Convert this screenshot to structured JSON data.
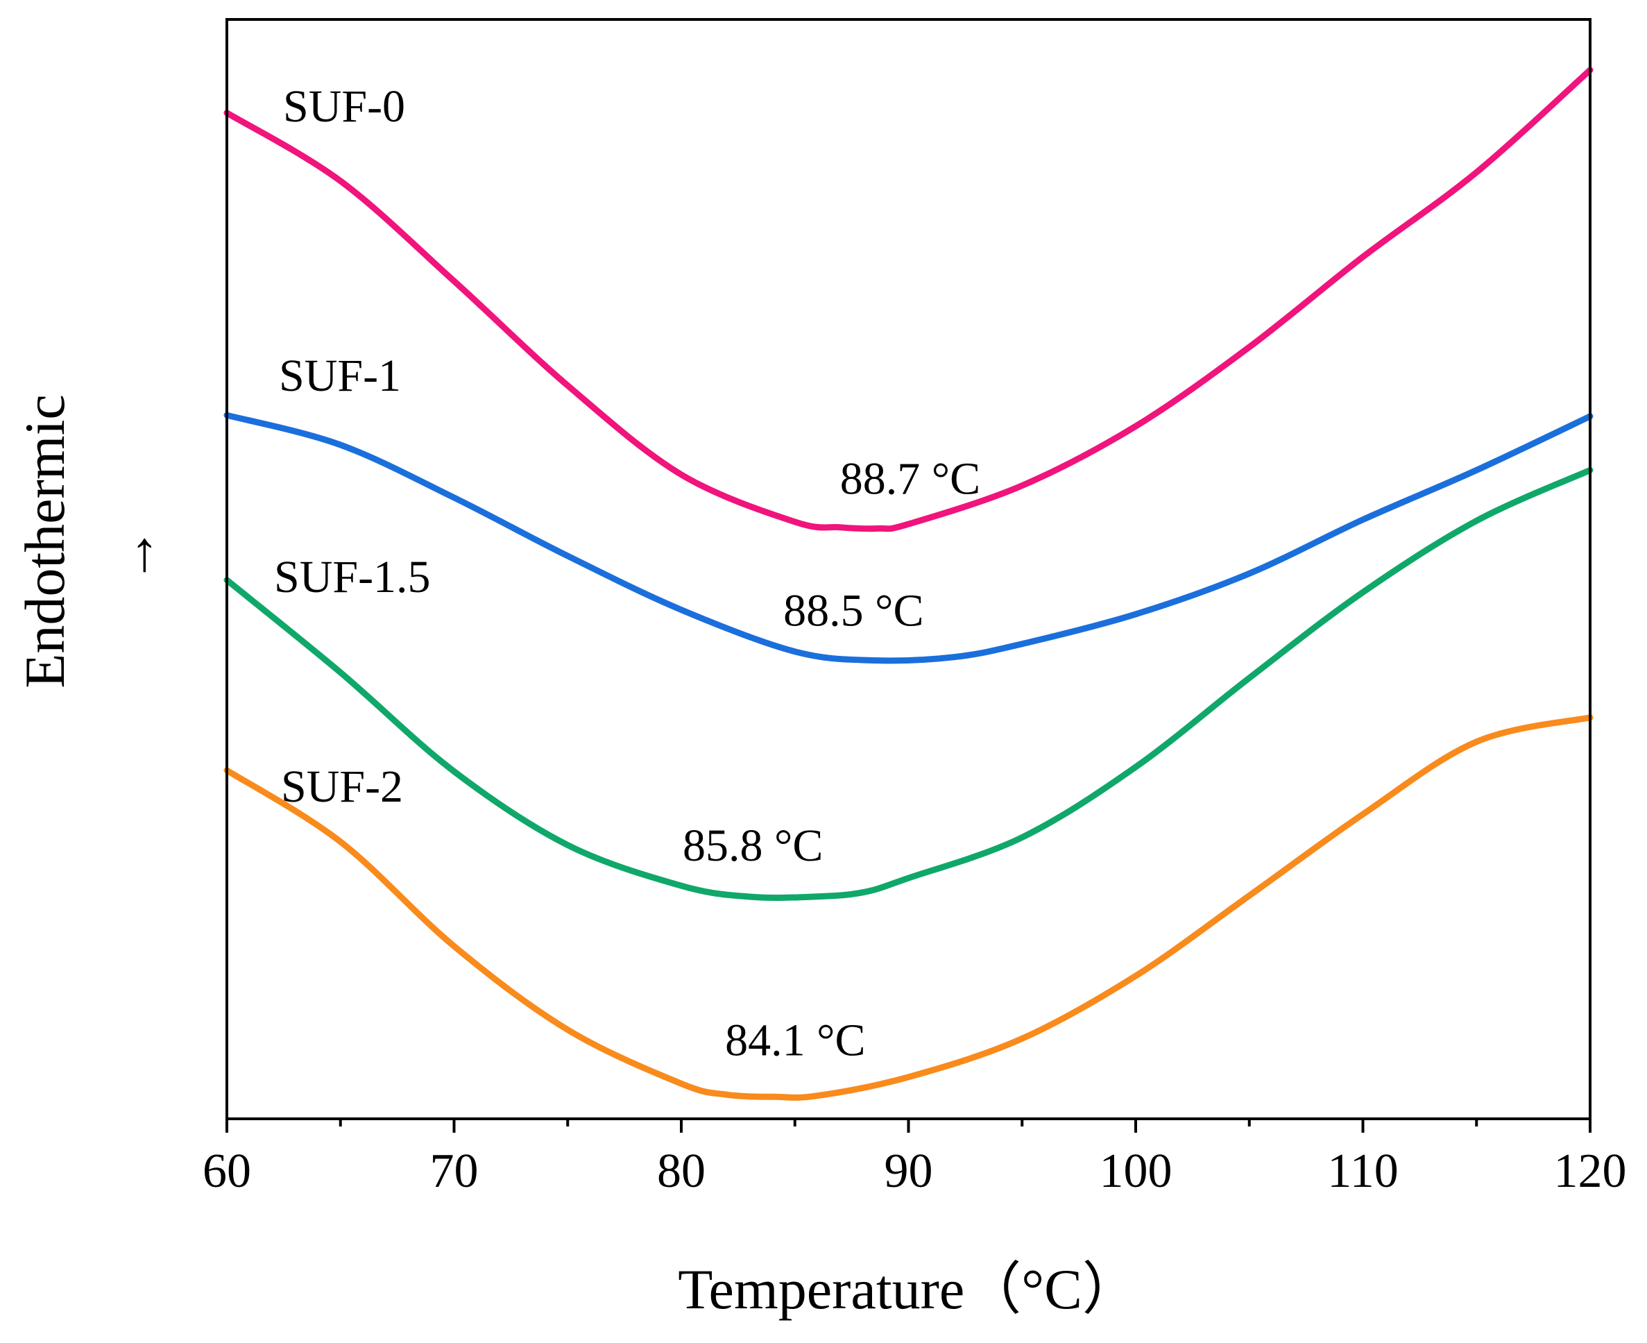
{
  "chart_data": {
    "type": "line",
    "xlabel": "Temperature（°C）",
    "ylabel": "Endothermic",
    "ylabel_arrow": "→",
    "xlim": [
      60,
      120
    ],
    "x_ticks": [
      60,
      70,
      80,
      90,
      100,
      110,
      120
    ],
    "ylim": [
      0,
      100
    ],
    "y_ticks_shown": false,
    "grid": false,
    "legend": "inline labels",
    "colors": {
      "SUF-0": "#f0147c",
      "SUF-1": "#1a6fdc",
      "SUF-1.5": "#0fa86a",
      "SUF-2": "#f98a1c"
    },
    "series": [
      {
        "name": "SUF-0",
        "peak_label": "88.7 °C",
        "x": [
          60,
          65,
          70,
          75,
          80,
          85,
          87,
          88.7,
          90,
          95,
          100,
          105,
          110,
          115,
          120
        ],
        "y": [
          91.5,
          85.3,
          76.2,
          66.7,
          58.6,
          54.3,
          53.8,
          53.7,
          54.1,
          57.6,
          63.0,
          70.2,
          78.4,
          86.1,
          95.4
        ]
      },
      {
        "name": "SUF-1",
        "peak_label": "88.5 °C",
        "x": [
          60,
          65,
          70,
          75,
          80,
          85,
          88.5,
          92,
          95,
          100,
          105,
          110,
          115,
          120
        ],
        "y": [
          64.0,
          61.3,
          56.5,
          51.2,
          46.3,
          42.5,
          41.7,
          42.0,
          43.2,
          45.9,
          49.6,
          54.5,
          59.0,
          63.9
        ]
      },
      {
        "name": "SUF-1.5",
        "peak_label": "85.8 °C",
        "x": [
          60,
          65,
          70,
          75,
          80,
          83,
          85.8,
          88,
          90,
          95,
          100,
          105,
          110,
          115,
          120
        ],
        "y": [
          49.0,
          40.6,
          31.6,
          24.9,
          21.2,
          20.2,
          20.2,
          20.6,
          21.9,
          25.6,
          32.0,
          40.1,
          47.9,
          54.4,
          59.0
        ]
      },
      {
        "name": "SUF-2",
        "peak_label": "84.1 °C",
        "x": [
          60,
          65,
          70,
          75,
          80,
          82,
          84.1,
          86,
          90,
          95,
          100,
          105,
          110,
          115,
          120
        ],
        "y": [
          31.7,
          25.2,
          15.7,
          8.1,
          3.2,
          2.2,
          2.0,
          2.1,
          3.8,
          7.3,
          13.0,
          20.3,
          27.7,
          34.3,
          36.5
        ]
      }
    ]
  }
}
